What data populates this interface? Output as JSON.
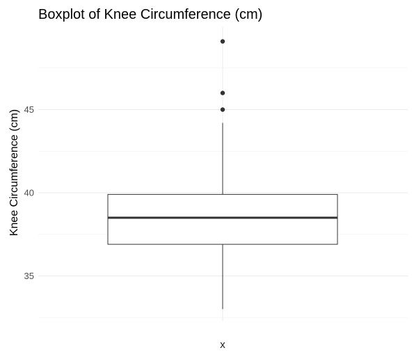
{
  "chart_data": {
    "type": "boxplot",
    "title": "Boxplot of Knee Circumference (cm)",
    "xlabel": "",
    "ylabel": "Knee Circumference (cm)",
    "categories": [
      "x"
    ],
    "ylim": [
      32.3,
      50.0
    ],
    "yticks": [
      35,
      40,
      45
    ],
    "grid": true,
    "box": {
      "whisker_low": 33.0,
      "q1": 36.9,
      "median": 38.5,
      "q3": 39.9,
      "whisker_high": 44.2
    },
    "outliers": [
      45.0,
      46.0,
      49.1
    ],
    "colors": {
      "grid_major": "#ebebeb",
      "grid_minor": "#f2f2f2",
      "box_stroke": "#333333",
      "box_fill": "#ffffff",
      "outlier": "#333333"
    }
  }
}
